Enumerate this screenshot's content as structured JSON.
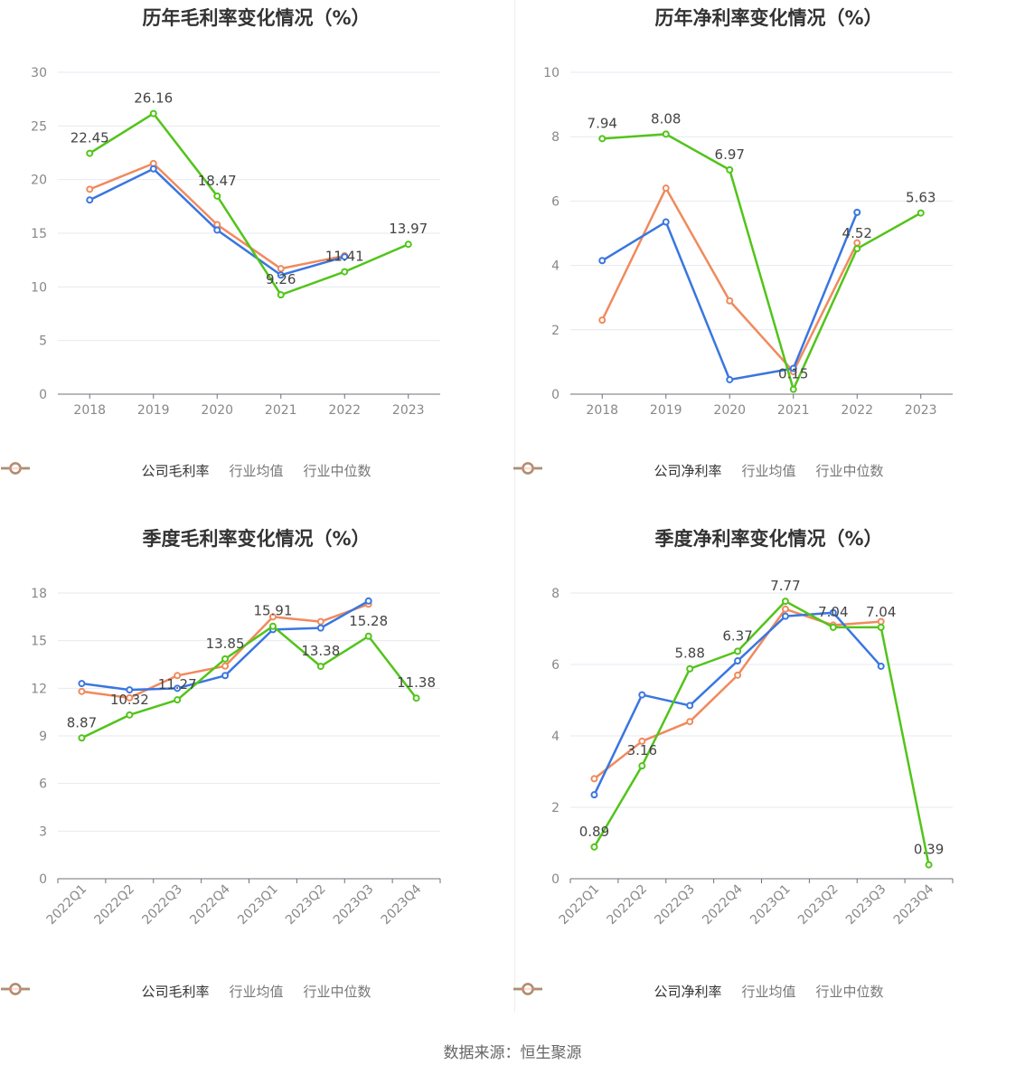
{
  "source_text": "数据来源：恒生聚源",
  "colors": {
    "company": "#52c41a",
    "industry_avg": "#3a76e0",
    "industry_median": "#f08a5d"
  },
  "chart_data": [
    {
      "type": "line",
      "title": "历年毛利率变化情况（%）",
      "categories": [
        "2018",
        "2019",
        "2020",
        "2021",
        "2022",
        "2023"
      ],
      "ylim": [
        0,
        30
      ],
      "yticks": [
        "0",
        "5",
        "10",
        "15",
        "20",
        "25",
        "30"
      ],
      "grid": true,
      "legend_position": "bottom",
      "series": [
        {
          "name": "公司毛利率",
          "values": [
            22.45,
            26.16,
            18.47,
            9.26,
            11.41,
            13.97
          ],
          "labels": [
            "22.45",
            "26.16",
            "18.47",
            "9.26",
            "11.41",
            "13.97"
          ]
        },
        {
          "name": "行业均值",
          "values": [
            18.1,
            21.0,
            15.3,
            11.1,
            12.8,
            null
          ]
        },
        {
          "name": "行业中位数",
          "values": [
            19.1,
            21.5,
            15.8,
            11.7,
            12.9,
            null
          ]
        }
      ]
    },
    {
      "type": "line",
      "title": "历年净利率变化情况（%）",
      "categories": [
        "2018",
        "2019",
        "2020",
        "2021",
        "2022",
        "2023"
      ],
      "ylim": [
        0,
        10
      ],
      "yticks": [
        "0",
        "2",
        "4",
        "6",
        "8",
        "10"
      ],
      "grid": true,
      "legend_position": "bottom",
      "series": [
        {
          "name": "公司净利率",
          "values": [
            7.94,
            8.08,
            6.97,
            0.15,
            4.52,
            5.63
          ],
          "labels": [
            "7.94",
            "8.08",
            "6.97",
            "0.15",
            "4.52",
            "5.63"
          ]
        },
        {
          "name": "行业均值",
          "values": [
            4.15,
            5.35,
            0.45,
            0.8,
            5.65,
            null
          ]
        },
        {
          "name": "行业中位数",
          "values": [
            2.3,
            6.4,
            2.9,
            0.7,
            4.7,
            null
          ]
        }
      ]
    },
    {
      "type": "line",
      "title": "季度毛利率变化情况（%）",
      "categories": [
        "2022Q1",
        "2022Q2",
        "2022Q3",
        "2022Q4",
        "2023Q1",
        "2023Q2",
        "2023Q3",
        "2023Q4"
      ],
      "ylim": [
        0,
        18
      ],
      "yticks": [
        "0",
        "3",
        "6",
        "9",
        "12",
        "15",
        "18"
      ],
      "grid": true,
      "legend_position": "bottom",
      "series": [
        {
          "name": "公司毛利率",
          "values": [
            8.87,
            10.32,
            11.27,
            13.85,
            15.91,
            13.38,
            15.28,
            11.38
          ],
          "labels": [
            "8.87",
            "10.32",
            "11.27",
            "13.85",
            "15.91",
            "13.38",
            "15.28",
            "11.38"
          ]
        },
        {
          "name": "行业均值",
          "values": [
            12.3,
            11.9,
            12.0,
            12.8,
            15.7,
            15.8,
            17.5,
            null
          ]
        },
        {
          "name": "行业中位数",
          "values": [
            11.8,
            11.4,
            12.8,
            13.4,
            16.5,
            16.2,
            17.3,
            null
          ]
        }
      ]
    },
    {
      "type": "line",
      "title": "季度净利率变化情况（%）",
      "categories": [
        "2022Q1",
        "2022Q2",
        "2022Q3",
        "2022Q4",
        "2023Q1",
        "2023Q2",
        "2023Q3",
        "2023Q4"
      ],
      "ylim": [
        0,
        8
      ],
      "yticks": [
        "0",
        "2",
        "4",
        "6",
        "8"
      ],
      "grid": true,
      "legend_position": "bottom",
      "series": [
        {
          "name": "公司净利率",
          "values": [
            0.89,
            3.16,
            5.88,
            6.37,
            7.77,
            7.04,
            7.04,
            0.39
          ],
          "labels": [
            "0.89",
            "3.16",
            "5.88",
            "6.37",
            "7.77",
            "7.04",
            "7.04",
            "0.39"
          ]
        },
        {
          "name": "行业均值",
          "values": [
            2.35,
            5.15,
            4.85,
            6.1,
            7.35,
            7.45,
            5.95,
            null
          ]
        },
        {
          "name": "行业中位数",
          "values": [
            2.8,
            3.85,
            4.4,
            5.7,
            7.55,
            7.1,
            7.2,
            null
          ]
        }
      ]
    }
  ]
}
